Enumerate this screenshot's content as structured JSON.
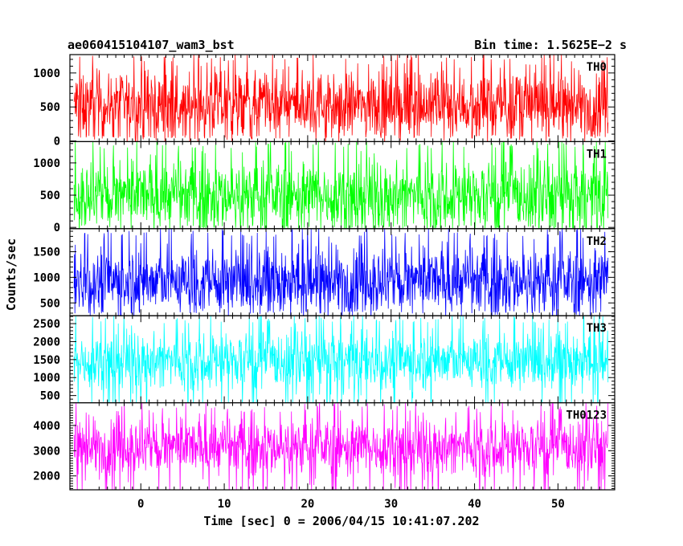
{
  "header": {
    "title": "ae060415104107_wam3_bst",
    "bin_time": "Bin time: 1.5625E−2 s"
  },
  "chart_data": {
    "type": "line",
    "xlabel": "Time [sec] 0 = 2006/04/15 10:41:07.202",
    "ylabel": "Counts/sec",
    "xlim": [
      -8.5,
      56.8
    ],
    "x_ticks": [
      0,
      10,
      20,
      30,
      40,
      50
    ],
    "x_tick_labels": [
      "0",
      "10",
      "20",
      "30",
      "40",
      "50"
    ],
    "data_x_range": [
      -8.0,
      56.0
    ],
    "bin_time_s": 0.015625,
    "series": [
      {
        "name": "TH0",
        "color": "#ff0000",
        "ylim": [
          -10,
          1270
        ],
        "ticks": [
          0,
          500,
          1000
        ],
        "tick_labels": [
          "0",
          "500",
          "1000"
        ],
        "mean": 530,
        "low": 80,
        "high": 1270
      },
      {
        "name": "TH1",
        "color": "#00ff00",
        "ylim": [
          -20,
          1330
        ],
        "ticks": [
          0,
          500,
          1000
        ],
        "tick_labels": [
          "0",
          "500",
          "1000"
        ],
        "mean": 500,
        "low": 30,
        "high": 1330
      },
      {
        "name": "TH2",
        "color": "#0000ff",
        "ylim": [
          250,
          1950
        ],
        "ticks": [
          500,
          1000,
          1500
        ],
        "tick_labels": [
          "500",
          "1000",
          "1500"
        ],
        "mean": 930,
        "low": 350,
        "high": 1950
      },
      {
        "name": "TH3",
        "color": "#00ffff",
        "ylim": [
          300,
          2720
        ],
        "ticks": [
          500,
          1000,
          1500,
          2000,
          2500
        ],
        "tick_labels": [
          "500",
          "1000",
          "1500",
          "2000",
          "2500"
        ],
        "mean": 1480,
        "low": 300,
        "high": 2720
      },
      {
        "name": "TH0123",
        "color": "#ff00ff",
        "ylim": [
          1450,
          4900
        ],
        "ticks": [
          2000,
          3000,
          4000
        ],
        "tick_labels": [
          "2000",
          "3000",
          "4000"
        ],
        "mean": 3150,
        "low": 1450,
        "high": 4900
      }
    ]
  }
}
